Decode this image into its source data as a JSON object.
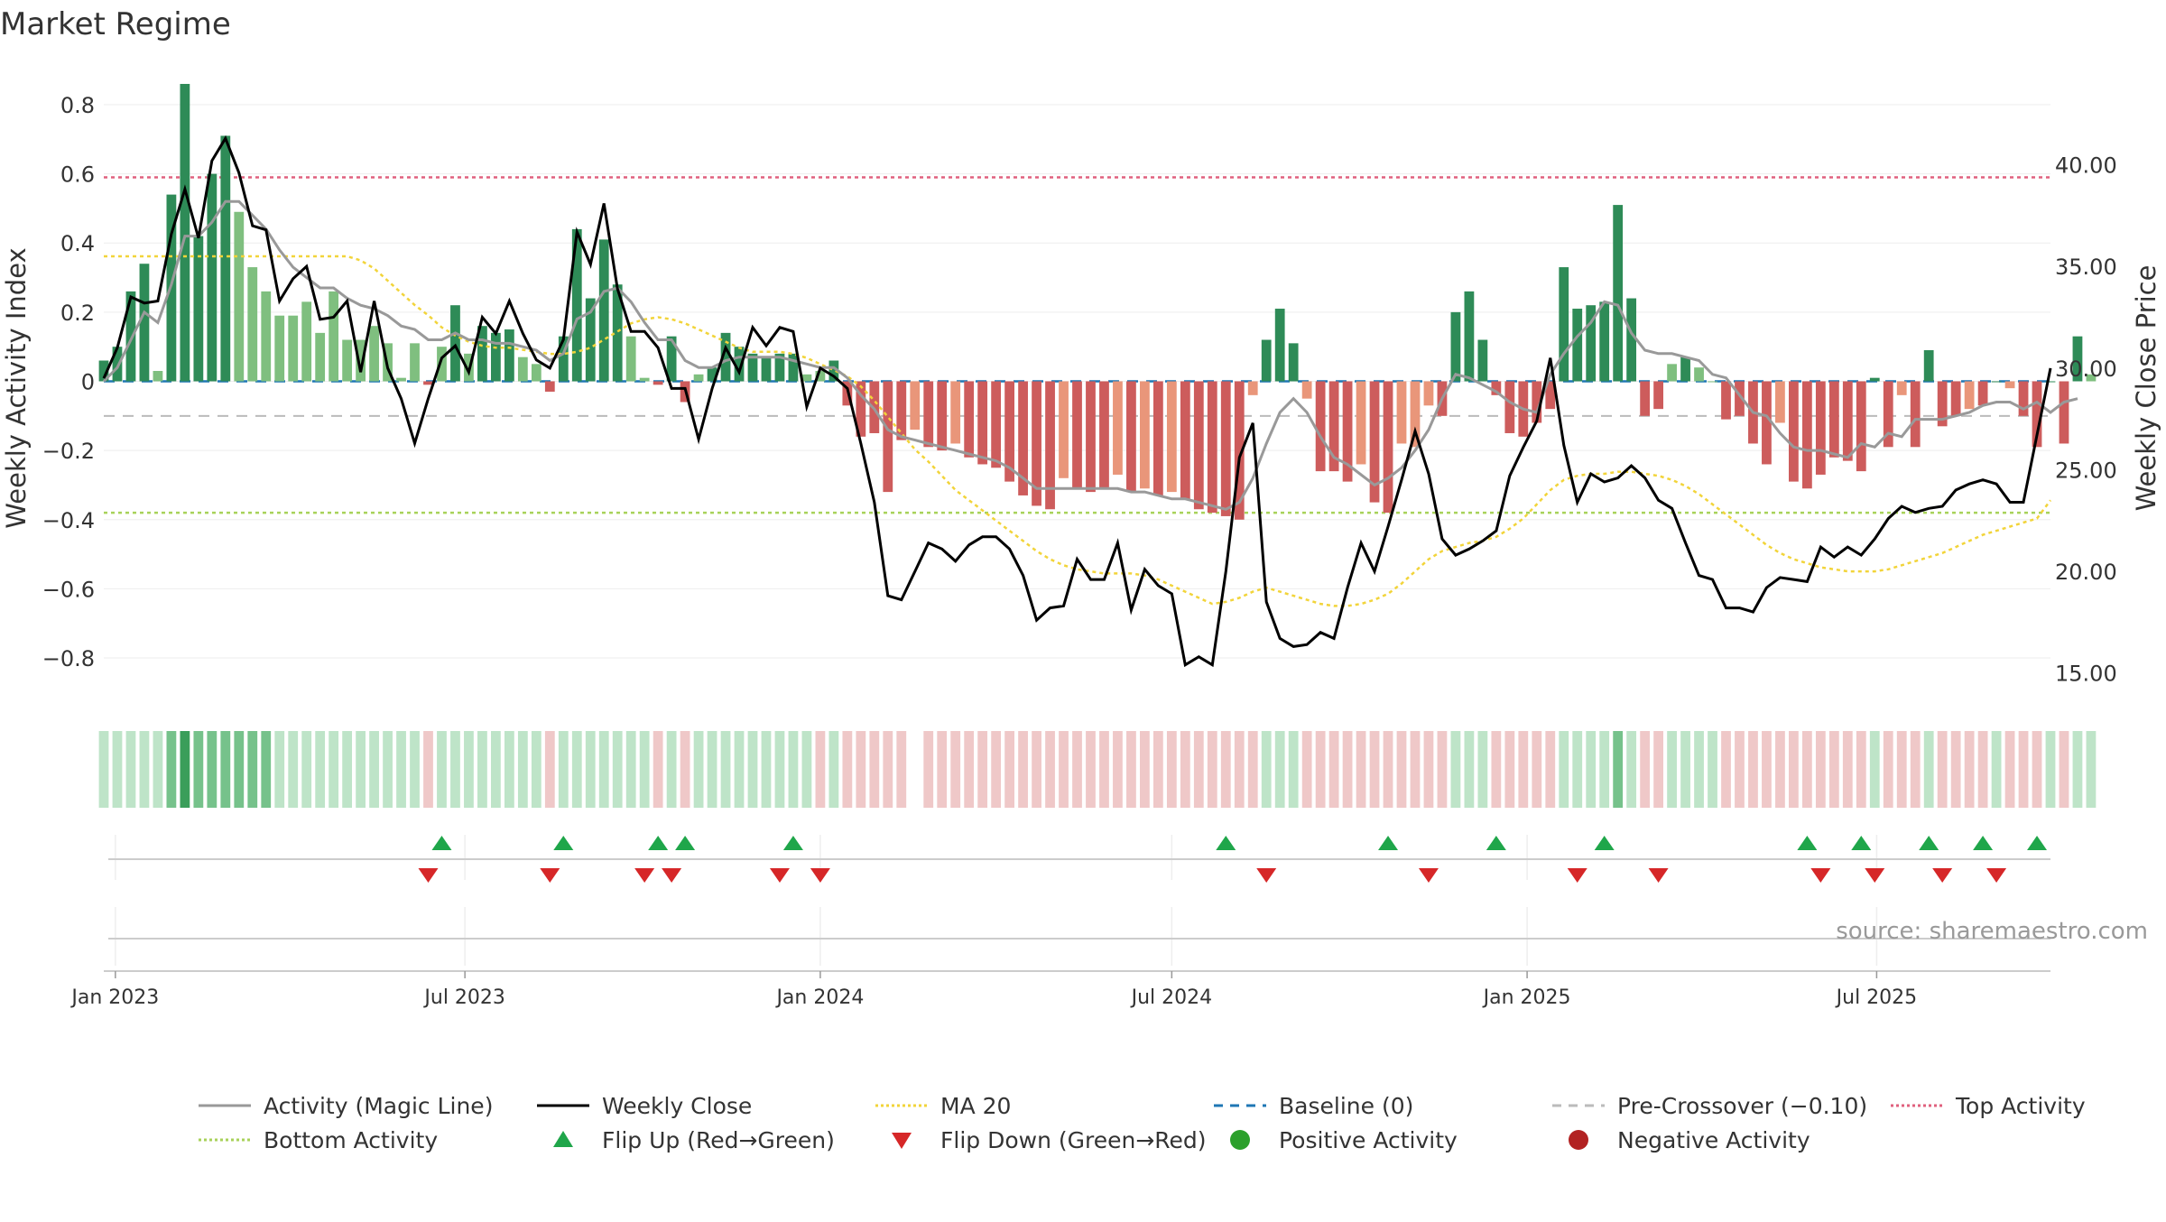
{
  "chart_data": {
    "type": "bar",
    "title": "Market Regime",
    "ylabel": "Weekly Activity Index",
    "y2label": "Weekly Close Price",
    "ylim": [
      -0.92,
      0.92
    ],
    "y2lim": [
      13.7,
      45.0
    ],
    "x_range": [
      "2022-12-26",
      "2025-09-29"
    ],
    "yticks": [
      -0.8,
      -0.6,
      -0.4,
      -0.2,
      0,
      0.2,
      0.4,
      0.6,
      0.8
    ],
    "yticklabels": [
      "−0.8",
      "−0.6",
      "−0.4",
      "−0.2",
      "0",
      "0.2",
      "0.4",
      "0.6",
      "0.8"
    ],
    "y2ticks": [
      15,
      20,
      25,
      30,
      35,
      40
    ],
    "y2ticklabels": [
      "15.00",
      "20.00",
      "25.00",
      "30.00",
      "35.00",
      "40.00"
    ],
    "xticks": [
      {
        "date": "2023-01-01",
        "label": "Jan 2023"
      },
      {
        "date": "2023-07-01",
        "label": "Jul 2023"
      },
      {
        "date": "2024-01-01",
        "label": "Jan 2024"
      },
      {
        "date": "2024-07-01",
        "label": "Jul 2024"
      },
      {
        "date": "2025-01-01",
        "label": "Jan 2025"
      },
      {
        "date": "2025-07-01",
        "label": "Jul 2025"
      }
    ],
    "start_date": "2022-12-26",
    "top_activity": 0.59,
    "bottom_activity": -0.38,
    "pre_crossover": -0.1,
    "baseline": 0,
    "activity_index": [
      0.06,
      0.1,
      0.26,
      0.34,
      0.03,
      0.54,
      0.86,
      0.42,
      0.6,
      0.71,
      0.49,
      0.33,
      0.26,
      0.19,
      0.19,
      0.23,
      0.14,
      0.26,
      0.12,
      0.12,
      0.16,
      0.11,
      0.01,
      0.11,
      -0.01,
      0.1,
      0.22,
      0.08,
      0.16,
      0.14,
      0.15,
      0.07,
      0.05,
      -0.03,
      0.13,
      0.44,
      0.24,
      0.41,
      0.28,
      0.13,
      0.01,
      -0.01,
      0.13,
      -0.06,
      0.02,
      0.04,
      0.14,
      0.1,
      0.08,
      0.07,
      0.08,
      0.08,
      0.02,
      0.03,
      0.06,
      -0.07,
      -0.16,
      -0.15,
      -0.32,
      -0.17,
      -0.14,
      -0.19,
      -0.2,
      -0.18,
      -0.22,
      -0.24,
      -0.25,
      -0.29,
      -0.33,
      -0.36,
      -0.37,
      -0.28,
      -0.31,
      -0.32,
      -0.31,
      -0.27,
      -0.32,
      -0.31,
      -0.33,
      -0.32,
      -0.34,
      -0.37,
      -0.38,
      -0.39,
      -0.4,
      -0.04,
      0.12,
      0.21,
      0.11,
      -0.05,
      -0.26,
      -0.26,
      -0.29,
      -0.24,
      -0.35,
      -0.38,
      -0.18,
      -0.19,
      -0.07,
      -0.1,
      0.2,
      0.26,
      0.12,
      -0.04,
      -0.15,
      -0.16,
      -0.12,
      -0.08,
      0.33,
      0.21,
      0.22,
      0.23,
      0.51,
      0.24,
      -0.1,
      -0.08,
      0.05,
      0.07,
      0.04,
      0.0,
      -0.11,
      -0.1,
      -0.18,
      -0.24,
      -0.12,
      -0.29,
      -0.31,
      -0.27,
      -0.22,
      -0.23,
      -0.26,
      0.01,
      -0.19,
      -0.04,
      -0.19,
      0.09,
      -0.13,
      -0.1,
      -0.08,
      -0.07,
      0.0,
      -0.02,
      -0.1,
      -0.19,
      0.0,
      -0.18,
      0.13,
      0.02
    ],
    "activity_magic_line": [
      0.0,
      0.04,
      0.12,
      0.2,
      0.17,
      0.28,
      0.42,
      0.42,
      0.46,
      0.52,
      0.52,
      0.48,
      0.44,
      0.38,
      0.33,
      0.3,
      0.27,
      0.27,
      0.24,
      0.22,
      0.21,
      0.19,
      0.16,
      0.15,
      0.12,
      0.12,
      0.14,
      0.12,
      0.12,
      0.11,
      0.11,
      0.1,
      0.09,
      0.06,
      0.08,
      0.18,
      0.2,
      0.26,
      0.27,
      0.23,
      0.17,
      0.12,
      0.12,
      0.06,
      0.04,
      0.04,
      0.06,
      0.07,
      0.07,
      0.07,
      0.07,
      0.06,
      0.05,
      0.04,
      0.04,
      0.01,
      -0.04,
      -0.08,
      -0.14,
      -0.16,
      -0.17,
      -0.18,
      -0.19,
      -0.2,
      -0.21,
      -0.22,
      -0.23,
      -0.25,
      -0.28,
      -0.31,
      -0.31,
      -0.31,
      -0.31,
      -0.31,
      -0.31,
      -0.31,
      -0.32,
      -0.32,
      -0.33,
      -0.34,
      -0.34,
      -0.35,
      -0.36,
      -0.37,
      -0.35,
      -0.28,
      -0.18,
      -0.09,
      -0.05,
      -0.09,
      -0.16,
      -0.22,
      -0.24,
      -0.27,
      -0.3,
      -0.28,
      -0.25,
      -0.2,
      -0.14,
      -0.05,
      0.02,
      0.01,
      -0.01,
      -0.03,
      -0.06,
      -0.08,
      -0.09,
      0.02,
      0.08,
      0.13,
      0.17,
      0.23,
      0.22,
      0.14,
      0.09,
      0.08,
      0.08,
      0.07,
      0.06,
      0.02,
      0.01,
      -0.04,
      -0.09,
      -0.1,
      -0.15,
      -0.19,
      -0.2,
      -0.2,
      -0.21,
      -0.22,
      -0.18,
      -0.19,
      -0.15,
      -0.16,
      -0.11,
      -0.11,
      -0.11,
      -0.1,
      -0.09,
      -0.07,
      -0.06,
      -0.06,
      -0.08,
      -0.06,
      -0.09,
      -0.06,
      -0.05
    ],
    "weekly_close": [
      29.5,
      31.0,
      33.5,
      33.2,
      33.3,
      36.6,
      38.8,
      36.4,
      40.2,
      41.3,
      39.6,
      37.0,
      36.8,
      33.3,
      34.4,
      35.0,
      32.4,
      32.5,
      33.3,
      29.8,
      33.3,
      30.0,
      28.5,
      26.3,
      28.5,
      30.5,
      31.1,
      29.8,
      32.5,
      31.7,
      33.3,
      31.7,
      30.4,
      30.0,
      31.4,
      36.7,
      35.1,
      38.1,
      33.9,
      31.8,
      31.8,
      31.0,
      29.0,
      29.0,
      26.5,
      29.0,
      31.0,
      29.8,
      32.0,
      31.1,
      32.0,
      31.8,
      28.1,
      30.0,
      29.6,
      29.0,
      26.3,
      23.4,
      18.8,
      18.6,
      20.0,
      21.4,
      21.1,
      20.5,
      21.3,
      21.7,
      21.7,
      21.1,
      19.8,
      17.6,
      18.2,
      18.3,
      20.6,
      19.6,
      19.6,
      21.4,
      18.1,
      20.1,
      19.3,
      18.9,
      15.4,
      15.8,
      15.4,
      20.0,
      25.6,
      27.3,
      18.5,
      16.7,
      16.3,
      16.4,
      17.0,
      16.7,
      19.2,
      21.4,
      20.0,
      22.2,
      24.5,
      26.9,
      24.8,
      21.6,
      20.8,
      21.1,
      21.5,
      22.0,
      24.7,
      26.1,
      27.4,
      30.5,
      26.2,
      23.4,
      24.8,
      24.4,
      24.6,
      25.2,
      24.6,
      23.5,
      23.1,
      21.4,
      19.8,
      19.6,
      18.2,
      18.2,
      18.0,
      19.2,
      19.7,
      19.6,
      19.5,
      21.2,
      20.7,
      21.2,
      20.8,
      21.6,
      22.6,
      23.2,
      22.9,
      23.1,
      23.2,
      24.0,
      24.3,
      24.5,
      24.3,
      23.4,
      23.4,
      26.7,
      30.0
    ],
    "ma20": [
      35.5,
      35.5,
      35.5,
      35.5,
      35.5,
      35.5,
      35.5,
      35.5,
      35.5,
      35.5,
      35.5,
      35.5,
      35.5,
      35.5,
      35.5,
      35.5,
      35.5,
      35.5,
      35.5,
      35.3,
      34.9,
      34.3,
      33.7,
      33.1,
      32.6,
      32.0,
      31.6,
      31.3,
      31.1,
      31.0,
      31.0,
      30.9,
      30.8,
      30.7,
      30.7,
      30.8,
      31.0,
      31.4,
      31.8,
      32.2,
      32.4,
      32.5,
      32.4,
      32.2,
      31.9,
      31.6,
      31.3,
      31.0,
      30.8,
      30.8,
      30.8,
      30.7,
      30.5,
      30.2,
      29.9,
      29.6,
      29.1,
      28.4,
      27.6,
      26.8,
      26.0,
      25.4,
      24.7,
      24.0,
      23.5,
      23.0,
      22.5,
      22.0,
      21.5,
      21.0,
      20.6,
      20.3,
      20.1,
      20.0,
      19.9,
      19.9,
      19.9,
      19.8,
      19.6,
      19.3,
      19.0,
      18.7,
      18.4,
      18.5,
      18.7,
      19.0,
      19.2,
      19.0,
      18.8,
      18.6,
      18.4,
      18.3,
      18.3,
      18.4,
      18.6,
      18.9,
      19.4,
      20.0,
      20.6,
      21.0,
      21.2,
      21.4,
      21.5,
      21.7,
      22.1,
      22.6,
      23.3,
      24.0,
      24.5,
      24.7,
      24.8,
      24.8,
      24.9,
      24.9,
      24.8,
      24.7,
      24.5,
      24.2,
      23.8,
      23.3,
      22.8,
      22.3,
      21.8,
      21.3,
      20.9,
      20.6,
      20.4,
      20.2,
      20.1,
      20.0,
      20.0,
      20.0,
      20.1,
      20.3,
      20.5,
      20.7,
      20.9,
      21.2,
      21.5,
      21.8,
      22.0,
      22.2,
      22.4,
      22.6,
      23.5
    ],
    "regime_strip": [
      1,
      1,
      1,
      1,
      1,
      2,
      3,
      2,
      2,
      2,
      2,
      2,
      2,
      1,
      1,
      1,
      1,
      1,
      1,
      1,
      1,
      1,
      1,
      1,
      -1,
      1,
      1,
      1,
      1,
      1,
      1,
      1,
      1,
      -1,
      1,
      1,
      1,
      1,
      1,
      1,
      1,
      -1,
      1,
      -1,
      1,
      1,
      1,
      1,
      1,
      1,
      1,
      1,
      1,
      -1,
      1,
      -1,
      -1,
      -1,
      -1,
      -1,
      0,
      -1,
      -1,
      -1,
      -1,
      -1,
      -1,
      -1,
      -1,
      -1,
      -1,
      -1,
      -1,
      -1,
      -1,
      -1,
      -1,
      -1,
      -1,
      -1,
      -1,
      -1,
      -1,
      -1,
      -1,
      -1,
      1,
      1,
      1,
      -1,
      -1,
      -1,
      -1,
      -1,
      -1,
      -1,
      -1,
      -1,
      -1,
      -1,
      1,
      1,
      1,
      -1,
      -1,
      -1,
      -1,
      -1,
      1,
      1,
      1,
      1,
      2,
      1,
      -1,
      -1,
      1,
      1,
      1,
      1,
      -1,
      -1,
      -1,
      -1,
      -1,
      -1,
      -1,
      -1,
      -1,
      -1,
      -1,
      1,
      -1,
      -1,
      -1,
      1,
      -1,
      -1,
      -1,
      -1,
      1,
      -1,
      -1,
      -1,
      1,
      -1,
      1,
      1
    ],
    "flip_up_dates": [
      "2023-06-19",
      "2023-08-21",
      "2023-10-09",
      "2023-10-23",
      "2023-12-18",
      "2024-07-29",
      "2024-10-21",
      "2024-12-16",
      "2025-02-10",
      "2025-05-26",
      "2025-06-23",
      "2025-07-28",
      "2025-08-25",
      "2025-09-22"
    ],
    "flip_down_dates": [
      "2023-06-12",
      "2023-08-14",
      "2023-10-02",
      "2023-10-16",
      "2023-12-11",
      "2024-01-01",
      "2024-08-19",
      "2024-11-11",
      "2025-01-27",
      "2025-03-10",
      "2025-06-02",
      "2025-06-30",
      "2025-08-04",
      "2025-09-01"
    ],
    "annotation": "source: sharemaestro.com",
    "colors": {
      "strong_green": "#2e8b57",
      "light_green": "#7fbf7f",
      "strong_red": "#cd5c5c",
      "light_red": "#e9967a",
      "magic_line": "#999999",
      "weekly_close": "#000000",
      "ma20": "#f2d43a",
      "baseline": "#1f77b4",
      "pre_crossover": "#bbbbbb",
      "top_activity": "#e0607e",
      "bottom_activity": "#a8d25a",
      "flip_up": "#1fa64a",
      "flip_down": "#d62728",
      "positive_dot": "#2ca02c",
      "negative_dot": "#b22222"
    },
    "legend": [
      {
        "label": "Activity (Magic Line)",
        "kind": "line",
        "color": "#999999",
        "dash": ""
      },
      {
        "label": "Weekly Close",
        "kind": "line",
        "color": "#000000",
        "dash": ""
      },
      {
        "label": "MA 20",
        "kind": "line",
        "color": "#f2d43a",
        "dash": "3 3"
      },
      {
        "label": "Baseline (0)",
        "kind": "line",
        "color": "#1f77b4",
        "dash": "10 8"
      },
      {
        "label": "Pre-Crossover (−0.10)",
        "kind": "line",
        "color": "#bbbbbb",
        "dash": "10 8"
      },
      {
        "label": "Top Activity",
        "kind": "line",
        "color": "#e0607e",
        "dash": "3 3"
      },
      {
        "label": "Bottom Activity",
        "kind": "line",
        "color": "#a8d25a",
        "dash": "3 3"
      },
      {
        "label": "Flip Up (Red→Green)",
        "kind": "up",
        "color": "#1fa64a",
        "dash": ""
      },
      {
        "label": "Flip Down (Green→Red)",
        "kind": "down",
        "color": "#d62728",
        "dash": ""
      },
      {
        "label": "Positive Activity",
        "kind": "dot",
        "color": "#2ca02c",
        "dash": ""
      },
      {
        "label": "Negative Activity",
        "kind": "dot",
        "color": "#b22222",
        "dash": ""
      }
    ],
    "legend_placement": "bottom",
    "grid": true
  }
}
